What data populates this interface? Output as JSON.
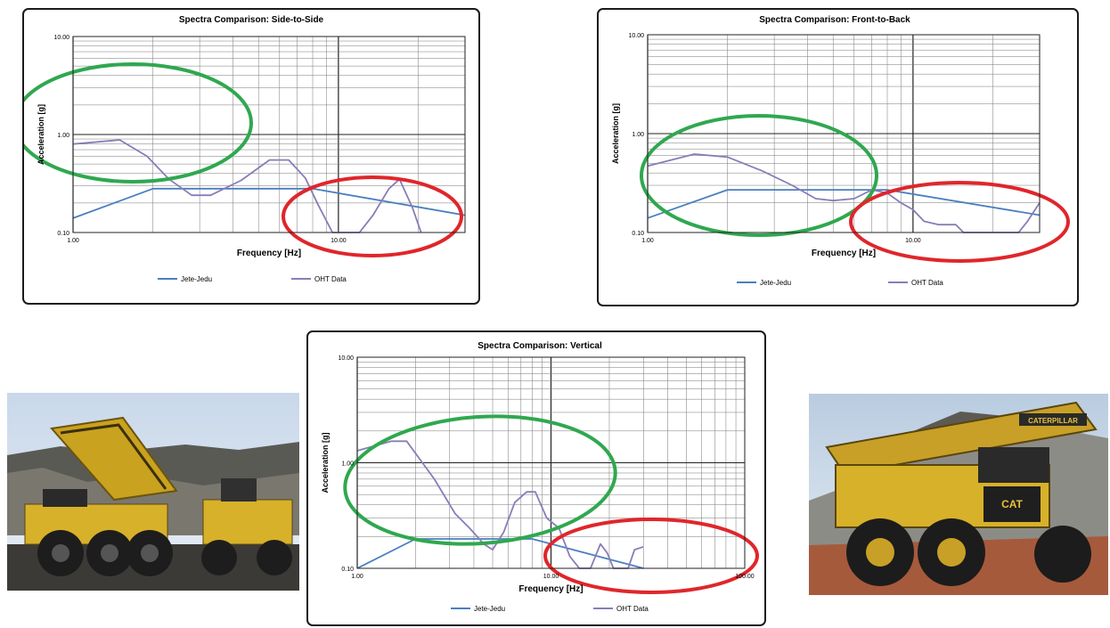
{
  "chart_data": [
    {
      "type": "line",
      "title": "Spectra Comparison: Side-to-Side",
      "xlabel": "Frequency [Hz]",
      "ylabel": "Acceleration [g]",
      "x_scale": "log",
      "y_scale": "log",
      "xlim": [
        1,
        30
      ],
      "ylim": [
        0.1,
        10
      ],
      "x_tick_labels": [
        "1.00",
        "10.00"
      ],
      "y_tick_labels": [
        "0.10",
        "1.00",
        "10.00"
      ],
      "grid": true,
      "legend_position": "bottom",
      "series": [
        {
          "name": "Jete-Jedu",
          "color": "#4a7fc0",
          "points": [
            [
              1.0,
              0.14
            ],
            [
              2.0,
              0.28
            ],
            [
              8.0,
              0.28
            ],
            [
              30.0,
              0.15
            ]
          ]
        },
        {
          "name": "OHT Data",
          "color": "#8a7cb8",
          "points": [
            [
              1.0,
              0.8
            ],
            [
              1.5,
              0.88
            ],
            [
              1.9,
              0.6
            ],
            [
              2.3,
              0.35
            ],
            [
              2.8,
              0.24
            ],
            [
              3.3,
              0.24
            ],
            [
              4.3,
              0.34
            ],
            [
              5.5,
              0.55
            ],
            [
              6.5,
              0.55
            ],
            [
              7.5,
              0.36
            ],
            [
              8.4,
              0.19
            ],
            [
              9.5,
              0.1
            ],
            [
              12.0,
              0.1
            ],
            [
              13.5,
              0.15
            ],
            [
              15.5,
              0.28
            ],
            [
              17.0,
              0.35
            ],
            [
              19.0,
              0.18
            ],
            [
              20.5,
              0.1
            ]
          ]
        }
      ],
      "annotations": [
        {
          "shape": "ellipse",
          "color": "#2fa84f"
        },
        {
          "shape": "ellipse",
          "color": "#e0262b"
        }
      ]
    },
    {
      "type": "line",
      "title": "Spectra Comparison: Front-to-Back",
      "xlabel": "Frequency [Hz]",
      "ylabel": "Acceleration [g]",
      "x_scale": "log",
      "y_scale": "log",
      "xlim": [
        1,
        30
      ],
      "ylim": [
        0.1,
        10
      ],
      "x_tick_labels": [
        "1.00",
        "10.00"
      ],
      "y_tick_labels": [
        "0.10",
        "1.00",
        "10.00"
      ],
      "grid": true,
      "legend_position": "bottom",
      "series": [
        {
          "name": "Jete-Jedu",
          "color": "#4a7fc0",
          "points": [
            [
              1.0,
              0.14
            ],
            [
              2.0,
              0.27
            ],
            [
              8.0,
              0.27
            ],
            [
              30.0,
              0.15
            ]
          ]
        },
        {
          "name": "OHT Data",
          "color": "#8a7cb8",
          "points": [
            [
              1.0,
              0.47
            ],
            [
              1.5,
              0.62
            ],
            [
              2.0,
              0.58
            ],
            [
              2.7,
              0.42
            ],
            [
              3.5,
              0.3
            ],
            [
              4.3,
              0.22
            ],
            [
              5.0,
              0.21
            ],
            [
              6.0,
              0.22
            ],
            [
              7.0,
              0.27
            ],
            [
              8.0,
              0.25
            ],
            [
              9.0,
              0.2
            ],
            [
              10.0,
              0.17
            ],
            [
              11.0,
              0.13
            ],
            [
              12.5,
              0.12
            ],
            [
              14.5,
              0.12
            ],
            [
              15.5,
              0.1
            ],
            [
              25.0,
              0.1
            ],
            [
              27.0,
              0.13
            ],
            [
              30.0,
              0.2
            ]
          ]
        }
      ],
      "annotations": [
        {
          "shape": "ellipse",
          "color": "#2fa84f"
        },
        {
          "shape": "ellipse",
          "color": "#e0262b"
        }
      ]
    },
    {
      "type": "line",
      "title": "Spectra Comparison: Vertical",
      "xlabel": "Frequency [Hz]",
      "ylabel": "Acceleration [g]",
      "x_scale": "log",
      "y_scale": "log",
      "xlim": [
        1,
        100
      ],
      "ylim": [
        0.1,
        10
      ],
      "x_tick_labels": [
        "1.00",
        "10.00",
        "100.00"
      ],
      "y_tick_labels": [
        "0.10",
        "1.00",
        "10.00"
      ],
      "grid": true,
      "legend_position": "bottom",
      "series": [
        {
          "name": "Jete-Jedu",
          "color": "#4a7fc0",
          "points": [
            [
              1.0,
              0.1
            ],
            [
              2.0,
              0.19
            ],
            [
              8.0,
              0.19
            ],
            [
              30.0,
              0.1
            ]
          ]
        },
        {
          "name": "OHT Data",
          "color": "#8a7cb8",
          "points": [
            [
              1.0,
              1.3
            ],
            [
              1.5,
              1.6
            ],
            [
              1.8,
              1.6
            ],
            [
              2.5,
              0.7
            ],
            [
              3.2,
              0.33
            ],
            [
              3.8,
              0.24
            ],
            [
              4.5,
              0.17
            ],
            [
              5.0,
              0.15
            ],
            [
              5.7,
              0.22
            ],
            [
              6.5,
              0.42
            ],
            [
              7.5,
              0.53
            ],
            [
              8.3,
              0.53
            ],
            [
              9.5,
              0.3
            ],
            [
              11.0,
              0.24
            ],
            [
              12.5,
              0.13
            ],
            [
              14.0,
              0.1
            ],
            [
              16.0,
              0.1
            ],
            [
              18.0,
              0.17
            ],
            [
              19.5,
              0.14
            ],
            [
              21.0,
              0.1
            ],
            [
              25.0,
              0.1
            ],
            [
              27.0,
              0.15
            ],
            [
              30.0,
              0.16
            ]
          ]
        }
      ],
      "annotations": [
        {
          "shape": "ellipse",
          "color": "#2fa84f"
        },
        {
          "shape": "ellipse",
          "color": "#e0262b"
        }
      ]
    }
  ],
  "photos": [
    {
      "subject": "yellow haul truck dumping load beside loader at mine site"
    },
    {
      "subject": "yellow mining haul truck on red dirt road",
      "logo_text": "CATERPILLAR",
      "badge_text": "CAT"
    }
  ]
}
